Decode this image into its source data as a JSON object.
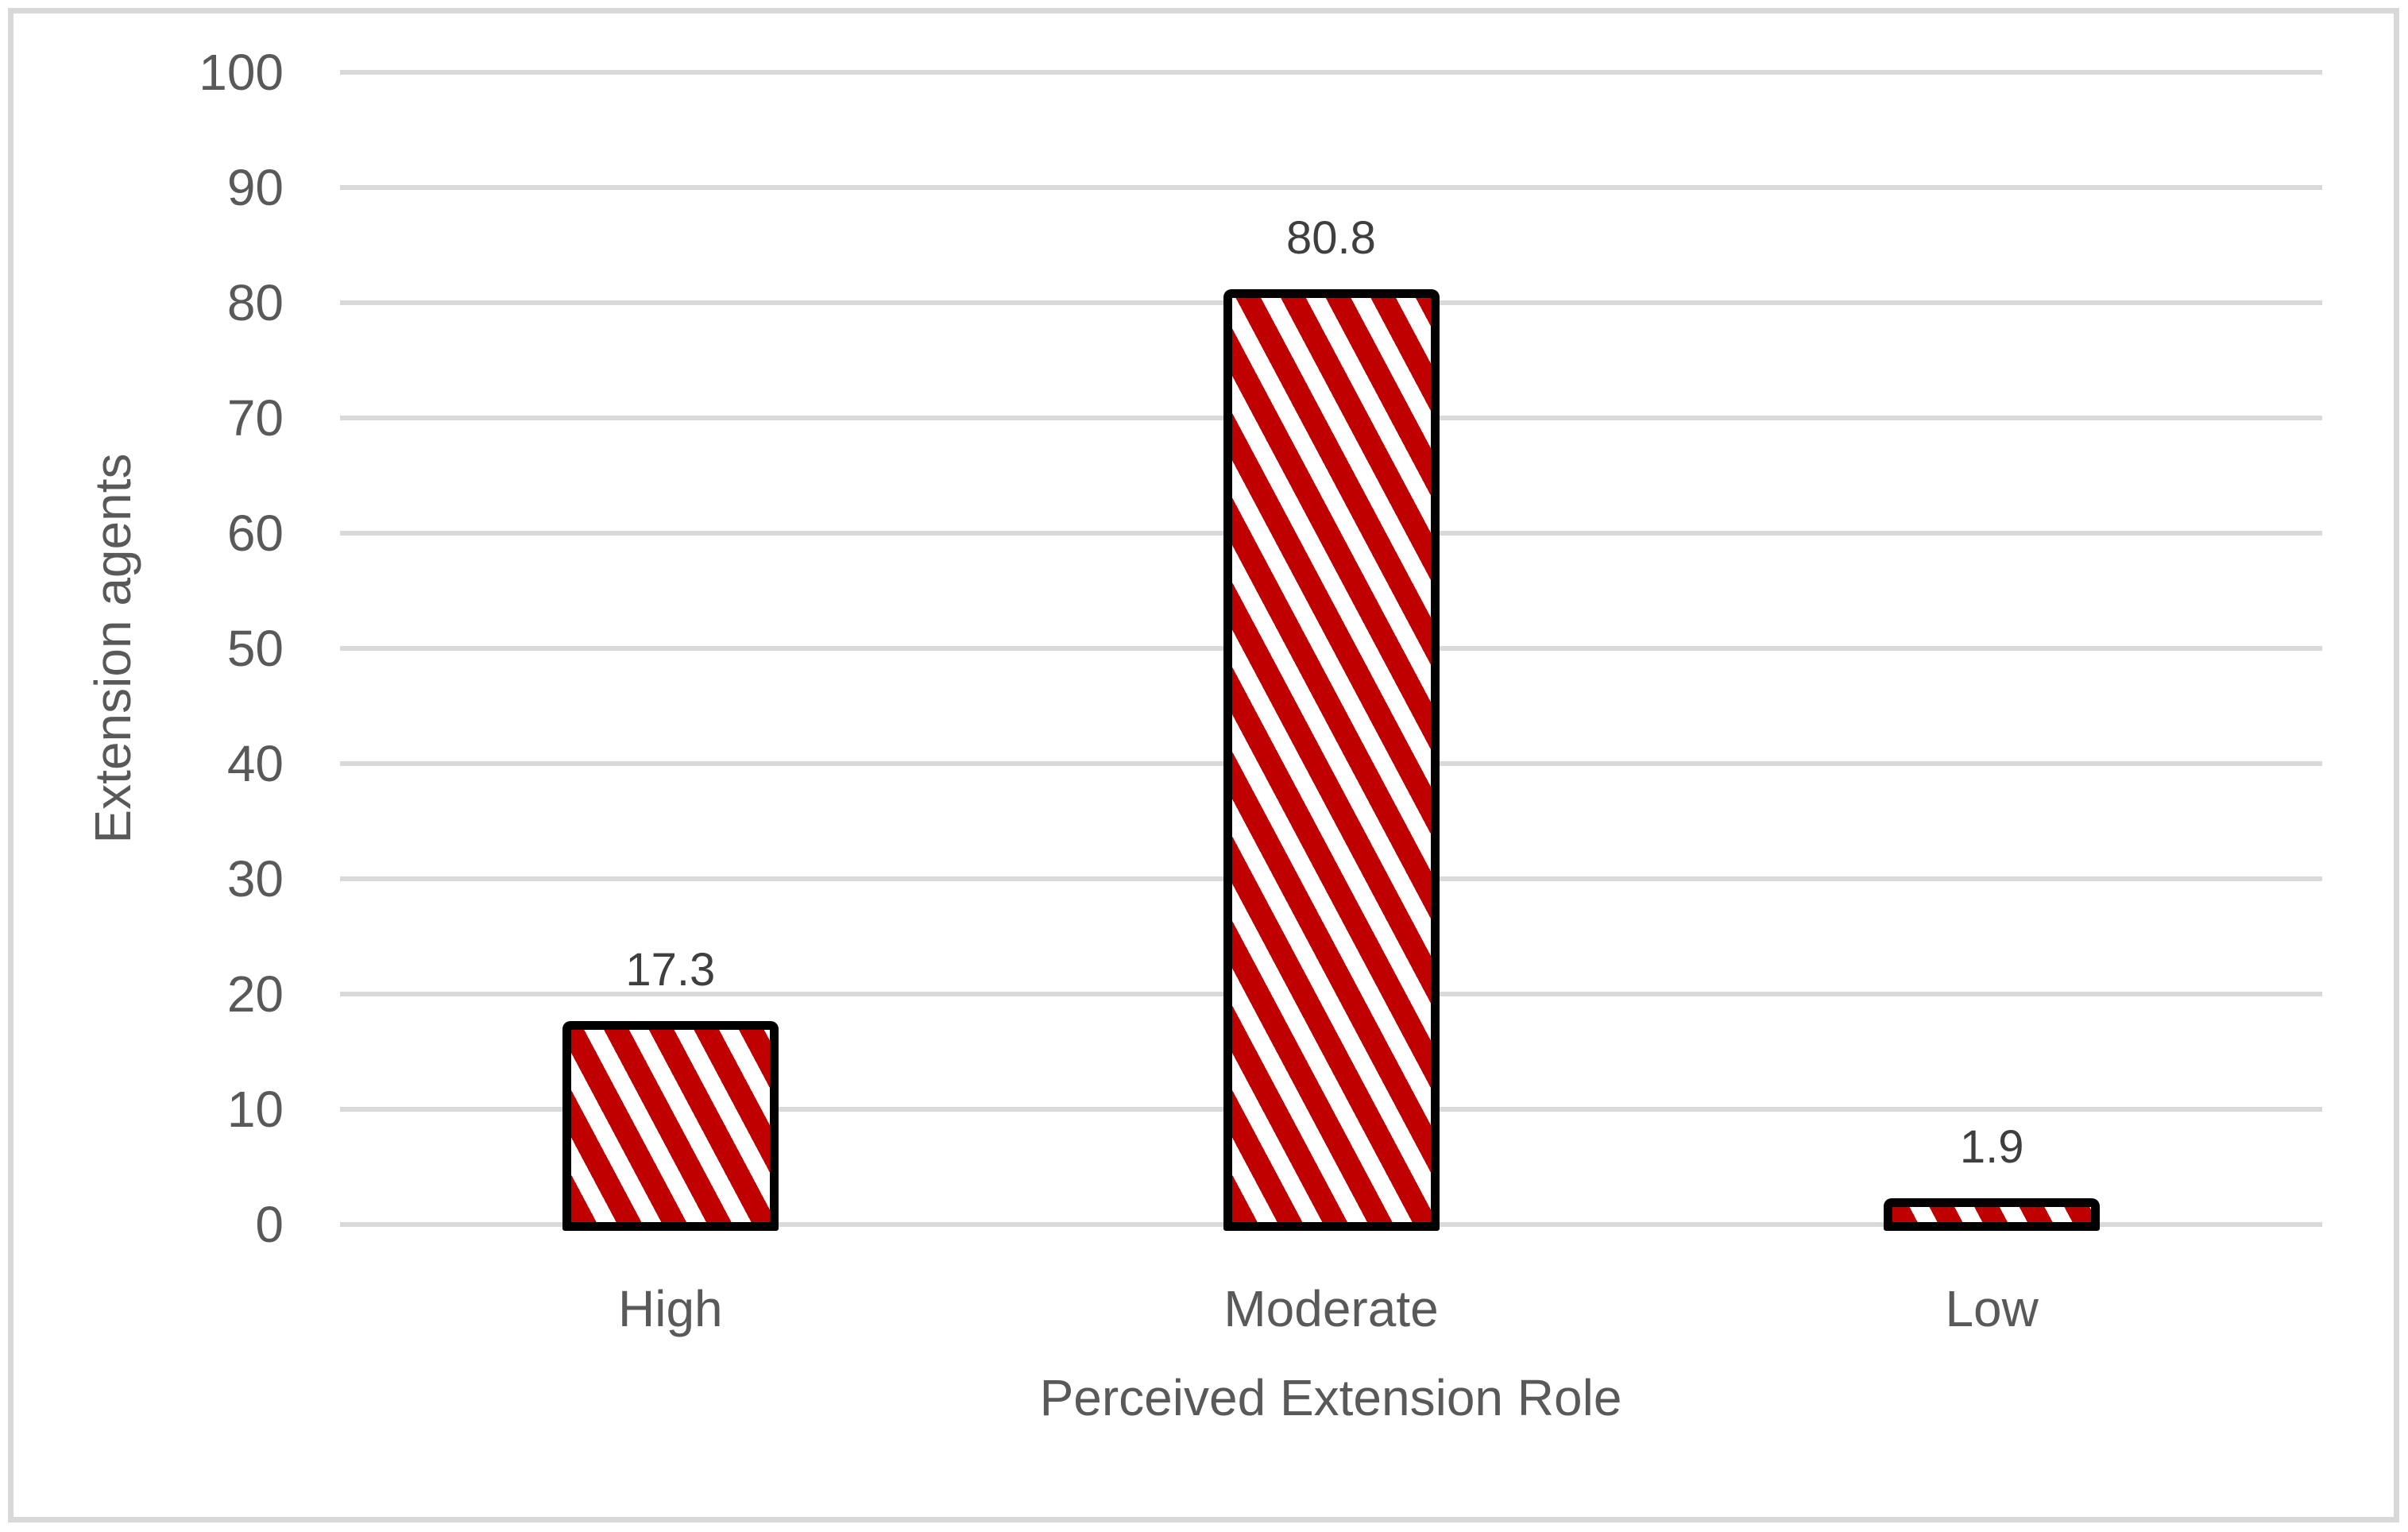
{
  "chart_data": {
    "type": "bar",
    "title": "",
    "categories": [
      "High",
      "Moderate",
      "Low"
    ],
    "values": [
      17.3,
      80.8,
      1.9
    ],
    "data_labels": [
      "17.3",
      "80.8",
      "1.9"
    ],
    "xlabel": "Perceived Extension Role",
    "ylabel": "Extension agents",
    "ylim": [
      0,
      100
    ],
    "yticks": [
      0,
      10,
      20,
      30,
      40,
      50,
      60,
      70,
      80,
      90,
      100
    ],
    "grid": "horizontal-gridlines-on",
    "legend": "none",
    "bar_style": {
      "fill_pattern": "wide-downward-diagonal-stripes",
      "stripe_color": "#C00000",
      "stripe_background": "#FFFFFF",
      "border_color": "#000000"
    },
    "colors": {
      "gridline": "#D9D9D9",
      "chart_border": "#D8D8D8",
      "axis_text": "#595959",
      "data_label_text": "#3F3F3F",
      "background": "#FFFFFF"
    }
  }
}
